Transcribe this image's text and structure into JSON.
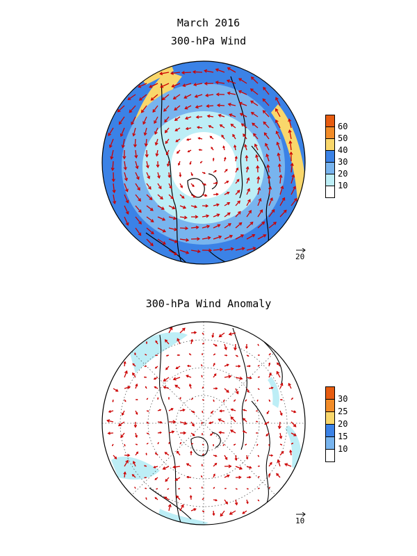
{
  "header": {
    "date": "March 2016",
    "top_title": "300-hPa Wind"
  },
  "bottom": {
    "title": "300-hPa Wind Anomaly"
  },
  "colors": {
    "c_white": "#ffffff",
    "c_lightblue": "#bdeef6",
    "c_midblue": "#78b4ee",
    "c_blue": "#3b82e6",
    "c_yellow": "#f9d76b",
    "c_orange": "#f28c28",
    "c_darkorange": "#e75c10",
    "arrow": "#cc0000",
    "coast": "#000000"
  },
  "top_colorbar": {
    "labels": [
      "60",
      "50",
      "40",
      "30",
      "20",
      "10"
    ]
  },
  "bottom_colorbar": {
    "labels": [
      "30",
      "25",
      "20",
      "15",
      "10"
    ]
  },
  "top_ref_vector": "20",
  "bottom_ref_vector": "10"
}
